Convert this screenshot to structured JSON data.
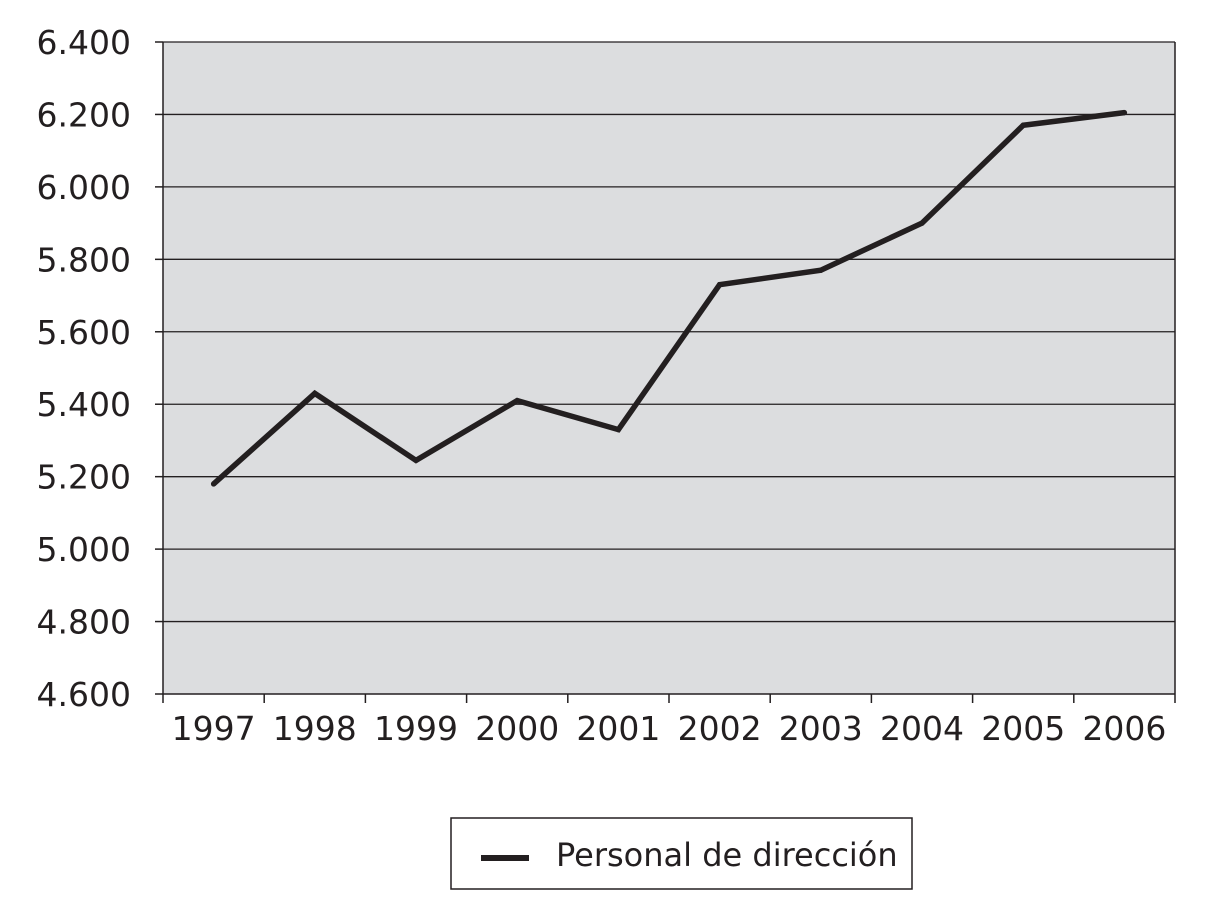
{
  "chart_data": {
    "type": "line",
    "title": "",
    "xlabel": "",
    "ylabel": "",
    "categories": [
      "1997",
      "1998",
      "1999",
      "2000",
      "2001",
      "2002",
      "2003",
      "2004",
      "2005",
      "2006"
    ],
    "series": [
      {
        "name": "Personal de dirección",
        "values": [
          5180,
          5430,
          5245,
          5410,
          5330,
          5730,
          5770,
          5900,
          6170,
          6205
        ]
      }
    ],
    "ylim": [
      4600,
      6400
    ],
    "yticks": [
      4600,
      4800,
      5000,
      5200,
      5400,
      5600,
      5800,
      6000,
      6200,
      6400
    ],
    "ytick_labels": [
      "4.600",
      "4.800",
      "5.000",
      "5.200",
      "5.400",
      "5.600",
      "5.800",
      "6.000",
      "6.200",
      "6.400"
    ],
    "grid": true,
    "legend_position": "bottom",
    "colors": {
      "plot_background": "#dcdddf",
      "line": "#231f20",
      "grid": "#231f20",
      "axis": "#231f20"
    }
  }
}
